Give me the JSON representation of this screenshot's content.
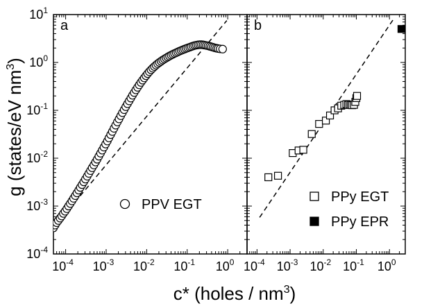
{
  "chart_data": [
    {
      "panel_label": "a",
      "type": "scatter",
      "xscale": "log",
      "yscale": "log",
      "xlim": [
        5e-05,
        3
      ],
      "ylim": [
        0.0001,
        10
      ],
      "x_ticks": [
        {
          "base": "10",
          "exp": "-4"
        },
        {
          "base": "10",
          "exp": "-3"
        },
        {
          "base": "10",
          "exp": "-2"
        },
        {
          "base": "10",
          "exp": "-1"
        },
        {
          "base": "10",
          "exp": "0"
        }
      ],
      "y_ticks": [
        {
          "base": "10",
          "exp": "-4"
        },
        {
          "base": "10",
          "exp": "-3"
        },
        {
          "base": "10",
          "exp": "-2"
        },
        {
          "base": "10",
          "exp": "-1"
        },
        {
          "base": "10",
          "exp": "0"
        },
        {
          "base": "10",
          "exp": "1"
        }
      ],
      "legend_placement": "lower-right",
      "series": [
        {
          "name": "PPV EGT",
          "marker": "open-circle",
          "points": [
            [
              5e-05,
              0.00035
            ],
            [
              5.5e-05,
              0.0004
            ],
            [
              6e-05,
              0.00045
            ],
            [
              6.6e-05,
              0.0005
            ],
            [
              7.3e-05,
              0.00056
            ],
            [
              8e-05,
              0.00062
            ],
            [
              8.8e-05,
              0.0007
            ],
            [
              9.7e-05,
              0.00078
            ],
            [
              0.000107,
              0.00088
            ],
            [
              0.000118,
              0.001
            ],
            [
              0.00013,
              0.00113
            ],
            [
              0.000143,
              0.00128
            ],
            [
              0.000157,
              0.00145
            ],
            [
              0.000173,
              0.00165
            ],
            [
              0.00019,
              0.00188
            ],
            [
              0.00021,
              0.00215
            ],
            [
              0.00023,
              0.00245
            ],
            [
              0.000254,
              0.0028
            ],
            [
              0.00028,
              0.0032
            ],
            [
              0.000308,
              0.00365
            ],
            [
              0.00034,
              0.0042
            ],
            [
              0.000373,
              0.0048
            ],
            [
              0.00041,
              0.0055
            ],
            [
              0.00045,
              0.0063
            ],
            [
              0.000497,
              0.0072
            ],
            [
              0.000547,
              0.0083
            ],
            [
              0.0006,
              0.0095
            ],
            [
              0.00066,
              0.011
            ],
            [
              0.000727,
              0.0127
            ],
            [
              0.0008,
              0.0147
            ],
            [
              0.00088,
              0.017
            ],
            [
              0.00097,
              0.0197
            ],
            [
              0.00107,
              0.0228
            ],
            [
              0.00117,
              0.0265
            ],
            [
              0.00129,
              0.031
            ],
            [
              0.00142,
              0.036
            ],
            [
              0.00156,
              0.042
            ],
            [
              0.00172,
              0.049
            ],
            [
              0.00189,
              0.057
            ],
            [
              0.00208,
              0.066
            ],
            [
              0.00229,
              0.077
            ],
            [
              0.00252,
              0.089
            ],
            [
              0.00278,
              0.103
            ],
            [
              0.00305,
              0.119
            ],
            [
              0.00336,
              0.137
            ],
            [
              0.0037,
              0.157
            ],
            [
              0.00407,
              0.18
            ],
            [
              0.00447,
              0.206
            ],
            [
              0.00492,
              0.235
            ],
            [
              0.00541,
              0.267
            ],
            [
              0.00596,
              0.302
            ],
            [
              0.00655,
              0.34
            ],
            [
              0.0072,
              0.382
            ],
            [
              0.00793,
              0.427
            ],
            [
              0.00872,
              0.475
            ],
            [
              0.0096,
              0.527
            ],
            [
              0.01055,
              0.582
            ],
            [
              0.0116,
              0.64
            ],
            [
              0.0128,
              0.7
            ],
            [
              0.0141,
              0.76
            ],
            [
              0.0155,
              0.82
            ],
            [
              0.017,
              0.88
            ],
            [
              0.0187,
              0.94
            ],
            [
              0.0206,
              1.0
            ],
            [
              0.0227,
              1.06
            ],
            [
              0.0249,
              1.12
            ],
            [
              0.0274,
              1.18
            ],
            [
              0.0302,
              1.24
            ],
            [
              0.0332,
              1.3
            ],
            [
              0.0365,
              1.36
            ],
            [
              0.0402,
              1.42
            ],
            [
              0.0442,
              1.48
            ],
            [
              0.0486,
              1.54
            ],
            [
              0.0535,
              1.6
            ],
            [
              0.0588,
              1.66
            ],
            [
              0.0647,
              1.72
            ],
            [
              0.0712,
              1.78
            ],
            [
              0.0783,
              1.84
            ],
            [
              0.0861,
              1.9
            ],
            [
              0.0947,
              1.96
            ],
            [
              0.104,
              2.02
            ],
            [
              0.115,
              2.08
            ],
            [
              0.126,
              2.14
            ],
            [
              0.139,
              2.2
            ],
            [
              0.153,
              2.26
            ],
            [
              0.168,
              2.3
            ],
            [
              0.185,
              2.33
            ],
            [
              0.204,
              2.35
            ],
            [
              0.224,
              2.35
            ],
            [
              0.247,
              2.33
            ],
            [
              0.271,
              2.3
            ],
            [
              0.298,
              2.26
            ],
            [
              0.328,
              2.22
            ],
            [
              0.361,
              2.17
            ],
            [
              0.397,
              2.12
            ],
            [
              0.437,
              2.07
            ],
            [
              0.48,
              2.02
            ],
            [
              0.53,
              1.98
            ],
            [
              0.58,
              1.95
            ],
            [
              0.65,
              1.92
            ],
            [
              0.75,
              1.9
            ]
          ]
        }
      ],
      "reference_line": {
        "style": "dashed",
        "points": [
          [
            5e-05,
            0.00035
          ],
          [
            0.95,
            7.5
          ]
        ]
      }
    },
    {
      "panel_label": "b",
      "type": "scatter",
      "xscale": "log",
      "yscale": "log",
      "xlim": [
        5e-05,
        3
      ],
      "ylim": [
        0.0001,
        10
      ],
      "x_ticks": [
        {
          "base": "10",
          "exp": "-4"
        },
        {
          "base": "10",
          "exp": "-3"
        },
        {
          "base": "10",
          "exp": "-2"
        },
        {
          "base": "10",
          "exp": "-1"
        },
        {
          "base": "10",
          "exp": "0"
        }
      ],
      "legend_placement": "lower-right",
      "series": [
        {
          "name": "PPy EGT",
          "marker": "open-square",
          "points": [
            [
              0.00022,
              0.004
            ],
            [
              0.00043,
              0.0043
            ],
            [
              0.0012,
              0.0128
            ],
            [
              0.0018,
              0.0145
            ],
            [
              0.0025,
              0.015
            ],
            [
              0.0045,
              0.032
            ],
            [
              0.0075,
              0.052
            ],
            [
              0.012,
              0.061
            ],
            [
              0.016,
              0.078
            ],
            [
              0.022,
              0.1
            ],
            [
              0.028,
              0.11
            ],
            [
              0.035,
              0.125
            ],
            [
              0.043,
              0.13
            ],
            [
              0.05,
              0.135
            ],
            [
              0.056,
              0.13
            ],
            [
              0.062,
              0.132
            ],
            [
              0.068,
              0.13
            ],
            [
              0.075,
              0.128
            ],
            [
              0.085,
              0.13
            ],
            [
              0.093,
              0.15
            ],
            [
              0.1,
              0.18
            ],
            [
              0.105,
              0.2
            ]
          ]
        },
        {
          "name": "PPy EPR",
          "marker": "filled-square",
          "points": [
            [
              2.3,
              5.0
            ]
          ]
        }
      ],
      "reference_line": {
        "style": "dashed",
        "points": [
          [
            0.00012,
            0.00058
          ],
          [
            1.4,
            8.5
          ]
        ]
      }
    }
  ],
  "axes_titles": {
    "y_main": "g (states/eV nm",
    "y_sup": "3",
    "y_close": ")",
    "x_main": "c* (holes / nm",
    "x_sup": "3",
    "x_close": ")"
  },
  "colors": {
    "axis": "#000000",
    "marker_edge": "#000000",
    "marker_fill_open": "#ffffff",
    "marker_fill_solid": "#000000"
  }
}
